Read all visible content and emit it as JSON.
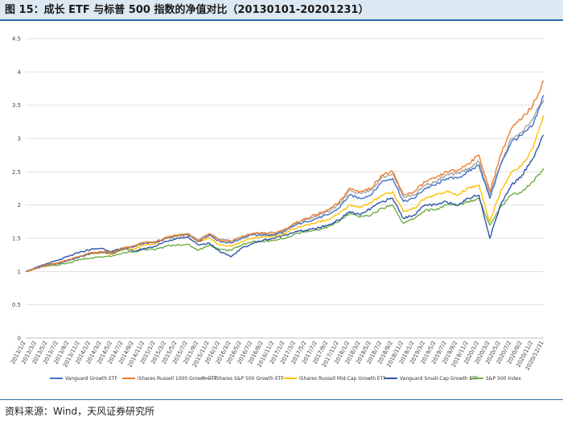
{
  "header": {
    "title": "图 15：成长 ETF 与标普 500 指数的净值对比（20130101-20201231）"
  },
  "footer": {
    "source": "资料来源：Wind，天风证券研究所"
  },
  "colors": {
    "title_bg": "#dce9f3",
    "title_border": "#2e6da4",
    "grid": "#e0e0e0"
  },
  "chart_data": {
    "type": "line",
    "title": "图 15：成长 ETF 与标普 500 指数的净值对比（20130101-20201231）",
    "xlabel": "",
    "ylabel": "",
    "ylim": [
      0,
      4.5
    ],
    "yticks": [
      0,
      0.5,
      1,
      1.5,
      2,
      2.5,
      3,
      3.5,
      4,
      4.5
    ],
    "grid": "horizontal",
    "legend_position": "bottom",
    "x": [
      "2013/1/2",
      "2013/3/2",
      "2013/5/2",
      "2013/7/2",
      "2013/9/2",
      "2013/11/2",
      "2014/1/2",
      "2014/3/2",
      "2014/5/2",
      "2014/7/2",
      "2014/9/2",
      "2014/11/2",
      "2015/1/2",
      "2015/3/2",
      "2015/5/2",
      "2015/7/2",
      "2015/9/2",
      "2015/11/2",
      "2016/1/2",
      "2016/3/2",
      "2016/5/2",
      "2016/7/2",
      "2016/9/2",
      "2016/11/2",
      "2017/1/2",
      "2017/3/2",
      "2017/5/2",
      "2017/7/2",
      "2017/9/2",
      "2017/11/2",
      "2018/1/2",
      "2018/3/2",
      "2018/5/2",
      "2018/7/2",
      "2018/9/2",
      "2018/11/2",
      "2019/1/2",
      "2019/3/2",
      "2019/5/2",
      "2019/7/2",
      "2019/9/2",
      "2019/11/2",
      "2020/1/2",
      "2020/3/2",
      "2020/5/2",
      "2020/7/2",
      "2020/9/2",
      "2020/11/2",
      "2020/12/31"
    ],
    "series": [
      {
        "name": "Vanguard Growth ETF",
        "color": "#4472c4",
        "values": [
          1.0,
          1.05,
          1.1,
          1.12,
          1.17,
          1.22,
          1.27,
          1.29,
          1.27,
          1.34,
          1.37,
          1.43,
          1.43,
          1.5,
          1.53,
          1.55,
          1.45,
          1.55,
          1.45,
          1.43,
          1.5,
          1.55,
          1.55,
          1.55,
          1.6,
          1.7,
          1.75,
          1.8,
          1.85,
          1.95,
          2.15,
          2.1,
          2.15,
          2.35,
          2.4,
          2.05,
          2.1,
          2.25,
          2.3,
          2.4,
          2.4,
          2.5,
          2.6,
          2.1,
          2.6,
          2.95,
          3.05,
          3.2,
          3.65
        ]
      },
      {
        "name": "iShares Russell 1000 Growth ETF",
        "color": "#ed7d31",
        "values": [
          1.0,
          1.05,
          1.1,
          1.13,
          1.18,
          1.23,
          1.28,
          1.3,
          1.28,
          1.35,
          1.38,
          1.44,
          1.44,
          1.51,
          1.54,
          1.56,
          1.46,
          1.57,
          1.47,
          1.45,
          1.52,
          1.57,
          1.58,
          1.58,
          1.63,
          1.73,
          1.8,
          1.86,
          1.92,
          2.03,
          2.25,
          2.2,
          2.25,
          2.45,
          2.5,
          2.15,
          2.2,
          2.35,
          2.4,
          2.5,
          2.52,
          2.62,
          2.75,
          2.2,
          2.75,
          3.15,
          3.3,
          3.5,
          3.87
        ]
      },
      {
        "name": "iShares S&P 500 Growth ETF",
        "color": "#a5a5a5",
        "values": [
          1.0,
          1.05,
          1.1,
          1.13,
          1.17,
          1.22,
          1.27,
          1.29,
          1.28,
          1.35,
          1.38,
          1.44,
          1.44,
          1.51,
          1.55,
          1.57,
          1.47,
          1.57,
          1.48,
          1.46,
          1.52,
          1.57,
          1.57,
          1.56,
          1.62,
          1.72,
          1.78,
          1.84,
          1.9,
          2.0,
          2.22,
          2.18,
          2.22,
          2.42,
          2.47,
          2.12,
          2.15,
          2.3,
          2.35,
          2.45,
          2.47,
          2.55,
          2.65,
          2.15,
          2.6,
          3.0,
          3.1,
          3.3,
          3.58
        ]
      },
      {
        "name": "iShares Russell Mid-Cap Growth ETF",
        "color": "#ffc000",
        "values": [
          1.0,
          1.05,
          1.1,
          1.13,
          1.17,
          1.22,
          1.27,
          1.28,
          1.26,
          1.33,
          1.34,
          1.4,
          1.42,
          1.5,
          1.55,
          1.57,
          1.45,
          1.5,
          1.4,
          1.38,
          1.45,
          1.5,
          1.52,
          1.53,
          1.57,
          1.65,
          1.7,
          1.74,
          1.78,
          1.86,
          2.0,
          1.97,
          2.03,
          2.15,
          2.2,
          1.9,
          1.95,
          2.1,
          2.15,
          2.2,
          2.15,
          2.25,
          2.3,
          1.75,
          2.2,
          2.5,
          2.6,
          2.85,
          3.35
        ]
      },
      {
        "name": "Vanguard Small-Cap Growth ETF",
        "color": "#2f55a4",
        "values": [
          1.0,
          1.06,
          1.12,
          1.17,
          1.23,
          1.29,
          1.33,
          1.35,
          1.3,
          1.35,
          1.3,
          1.35,
          1.38,
          1.45,
          1.5,
          1.52,
          1.4,
          1.43,
          1.3,
          1.22,
          1.35,
          1.42,
          1.47,
          1.5,
          1.55,
          1.6,
          1.62,
          1.65,
          1.7,
          1.77,
          1.9,
          1.85,
          1.95,
          2.05,
          2.1,
          1.8,
          1.85,
          2.0,
          2.0,
          2.05,
          2.0,
          2.1,
          2.15,
          1.5,
          2.0,
          2.3,
          2.45,
          2.7,
          3.05
        ]
      },
      {
        "name": "S&P 500 Index",
        "color": "#70ad47",
        "values": [
          1.0,
          1.05,
          1.08,
          1.1,
          1.13,
          1.18,
          1.2,
          1.22,
          1.23,
          1.28,
          1.3,
          1.33,
          1.33,
          1.38,
          1.4,
          1.41,
          1.32,
          1.4,
          1.33,
          1.32,
          1.4,
          1.45,
          1.45,
          1.47,
          1.5,
          1.57,
          1.6,
          1.63,
          1.67,
          1.75,
          1.87,
          1.82,
          1.85,
          1.95,
          2.0,
          1.72,
          1.8,
          1.92,
          1.93,
          2.0,
          2.0,
          2.05,
          2.1,
          1.7,
          1.97,
          2.15,
          2.2,
          2.35,
          2.55
        ]
      }
    ]
  }
}
